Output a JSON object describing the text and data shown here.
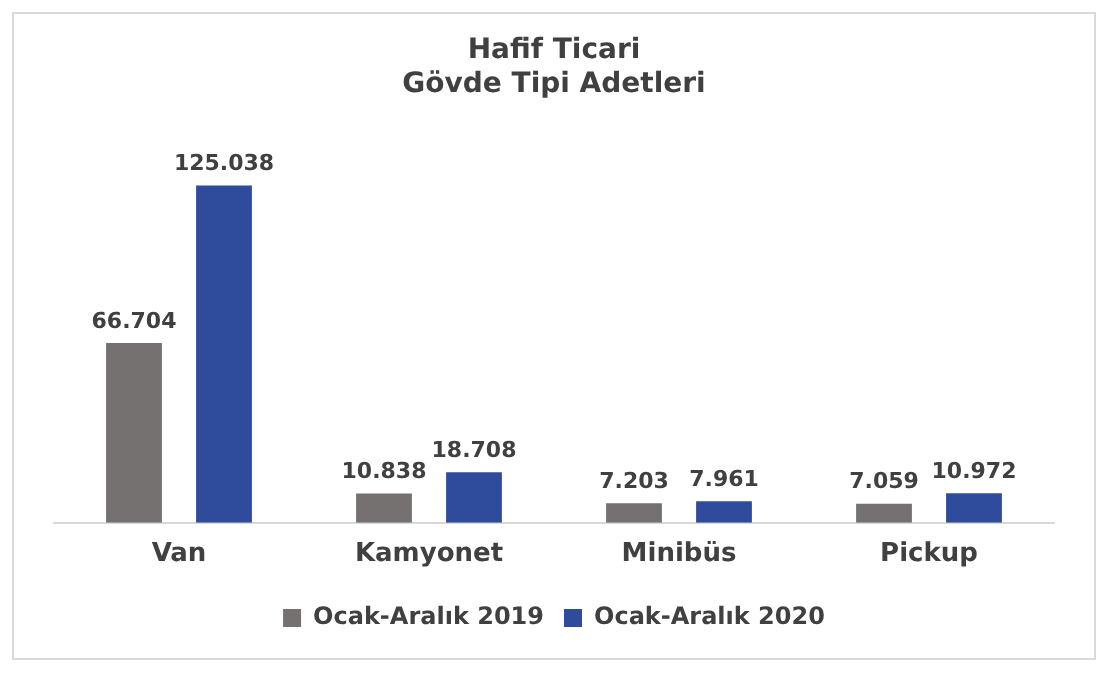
{
  "chart_data": {
    "type": "bar",
    "title": "Hafif Ticari\nGövde Tipi Adetleri",
    "categories": [
      "Van",
      "Kamyonet",
      "Minibüs",
      "Pickup"
    ],
    "series": [
      {
        "name": "Ocak-Aralık 2019",
        "color": "#767171",
        "values": [
          66704,
          10838,
          7203,
          7059
        ],
        "value_labels": [
          "66.704",
          "10.838",
          "7.203",
          "7.059"
        ]
      },
      {
        "name": "Ocak-Aralık 2020",
        "color": "#2f4b9b",
        "values": [
          125038,
          18708,
          7961,
          10972
        ],
        "value_labels": [
          "125.038",
          "18.708",
          "7.961",
          "10.972"
        ]
      }
    ],
    "legend": "bottom",
    "grid": false,
    "tick_labels": "x"
  }
}
